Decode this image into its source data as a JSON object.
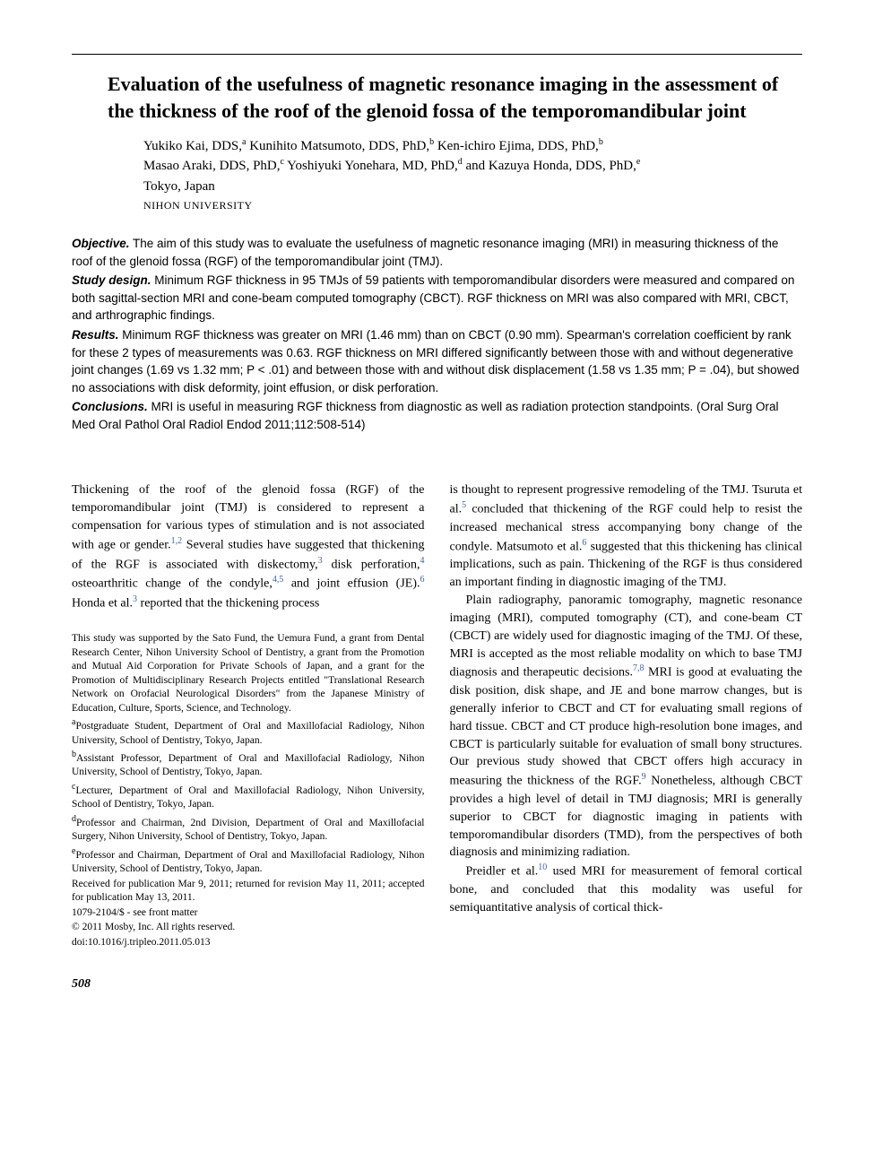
{
  "title": "Evaluation of the usefulness of magnetic resonance imaging in the assessment of the thickness of the roof of the glenoid fossa of the temporomandibular joint",
  "authors_line1": "Yukiko Kai, DDS,",
  "authors_sup1": "a",
  "authors_line2": " Kunihito Matsumoto, DDS, PhD,",
  "authors_sup2": "b",
  "authors_line3": " Ken-ichiro Ejima, DDS, PhD,",
  "authors_sup3": "b",
  "authors_line4": "Masao Araki, DDS, PhD,",
  "authors_sup4": "c",
  "authors_line5": " Yoshiyuki Yonehara, MD, PhD,",
  "authors_sup5": "d",
  "authors_line6": " and Kazuya Honda, DDS, PhD,",
  "authors_sup6": "e",
  "location": "Tokyo, Japan",
  "institution": "NIHON UNIVERSITY",
  "abstract": {
    "objective_label": "Objective.",
    "objective": " The aim of this study was to evaluate the usefulness of magnetic resonance imaging (MRI) in measuring thickness of the roof of the glenoid fossa (RGF) of the temporomandibular joint (TMJ).",
    "design_label": "Study design.",
    "design": " Minimum RGF thickness in 95 TMJs of 59 patients with temporomandibular disorders were measured and compared on both sagittal-section MRI and cone-beam computed tomography (CBCT). RGF thickness on MRI was also compared with MRI, CBCT, and arthrographic findings.",
    "results_label": "Results.",
    "results": " Minimum RGF thickness was greater on MRI (1.46 mm) than on CBCT (0.90 mm). Spearman's correlation coefficient by rank for these 2 types of measurements was 0.63. RGF thickness on MRI differed significantly between those with and without degenerative joint changes (1.69 vs 1.32 mm; P < .01) and between those with and without disk displacement (1.58 vs 1.35 mm; P = .04), but showed no associations with disk deformity, joint effusion, or disk perforation.",
    "conclusions_label": "Conclusions.",
    "conclusions": " MRI is useful in measuring RGF thickness from diagnostic as well as radiation protection standpoints. (Oral Surg Oral Med Oral Pathol Oral Radiol Endod 2011;112:508-514)"
  },
  "body": {
    "col1_p1a": "Thickening of the roof of the glenoid fossa (RGF) of the temporomandibular joint (TMJ) is considered to represent a compensation for various types of stimulation and is not associated with age or gender.",
    "col1_ref1": "1,2",
    "col1_p1b": " Several studies have suggested that thickening of the RGF is associated with diskectomy,",
    "col1_ref2": "3",
    "col1_p1c": " disk perforation,",
    "col1_ref3": "4",
    "col1_p1d": " osteoarthritic change of the condyle,",
    "col1_ref4": "4,5",
    "col1_p1e": " and joint effusion (JE).",
    "col1_ref5": "6",
    "col1_p1f": " Honda et al.",
    "col1_ref6": "3",
    "col1_p1g": " reported that the thickening process",
    "col2_p1a": "is thought to represent progressive remodeling of the TMJ. Tsuruta et al.",
    "col2_ref1": "5",
    "col2_p1b": " concluded that thickening of the RGF could help to resist the increased mechanical stress accompanying bony change of the condyle. Matsumoto et al.",
    "col2_ref2": "6",
    "col2_p1c": " suggested that this thickening has clinical implications, such as pain. Thickening of the RGF is thus considered an important finding in diagnostic imaging of the TMJ.",
    "col2_p2a": "Plain radiography, panoramic tomography, magnetic resonance imaging (MRI), computed tomography (CT), and cone-beam CT (CBCT) are widely used for diagnostic imaging of the TMJ. Of these, MRI is accepted as the most reliable modality on which to base TMJ diagnosis and therapeutic decisions.",
    "col2_ref3": "7,8",
    "col2_p2b": " MRI is good at evaluating the disk position, disk shape, and JE and bone marrow changes, but is generally inferior to CBCT and CT for evaluating small regions of hard tissue. CBCT and CT produce high-resolution bone images, and CBCT is particularly suitable for evaluation of small bony structures. Our previous study showed that CBCT offers high accuracy in measuring the thickness of the RGF.",
    "col2_ref4": "9",
    "col2_p2c": " Nonetheless, although CBCT provides a high level of detail in TMJ diagnosis; MRI is generally superior to CBCT for diagnostic imaging in patients with temporomandibular disorders (TMD), from the perspectives of both diagnosis and minimizing radiation.",
    "col2_p3a": "Preidler et al.",
    "col2_ref5": "10",
    "col2_p3b": " used MRI for measurement of femoral cortical bone, and concluded that this modality was useful for semiquantitative analysis of cortical thick-"
  },
  "footnotes": {
    "funding": "This study was supported by the Sato Fund, the Uemura Fund, a grant from Dental Research Center, Nihon University School of Dentistry, a grant from the Promotion and Mutual Aid Corporation for Private Schools of Japan, and a grant for the Promotion of Multidisciplinary Research Projects entitled \"Translational Research Network on Orofacial Neurological Disorders\" from the Japanese Ministry of Education, Culture, Sports, Science, and Technology.",
    "a": "Postgraduate Student, Department of Oral and Maxillofacial Radiology, Nihon University, School of Dentistry, Tokyo, Japan.",
    "b": "Assistant Professor, Department of Oral and Maxillofacial Radiology, Nihon University, School of Dentistry, Tokyo, Japan.",
    "c": "Lecturer, Department of Oral and Maxillofacial Radiology, Nihon University, School of Dentistry, Tokyo, Japan.",
    "d": "Professor and Chairman, 2nd Division, Department of Oral and Maxillofacial Surgery, Nihon University, School of Dentistry, Tokyo, Japan.",
    "e": "Professor and Chairman, Department of Oral and Maxillofacial Radiology, Nihon University, School of Dentistry, Tokyo, Japan.",
    "received": "Received for publication Mar 9, 2011; returned for revision May 11, 2011; accepted for publication May 13, 2011.",
    "issn": "1079-2104/$ - see front matter",
    "copyright": "© 2011 Mosby, Inc. All rights reserved.",
    "doi": "doi:10.1016/j.tripleo.2011.05.013"
  },
  "page_number": "508"
}
